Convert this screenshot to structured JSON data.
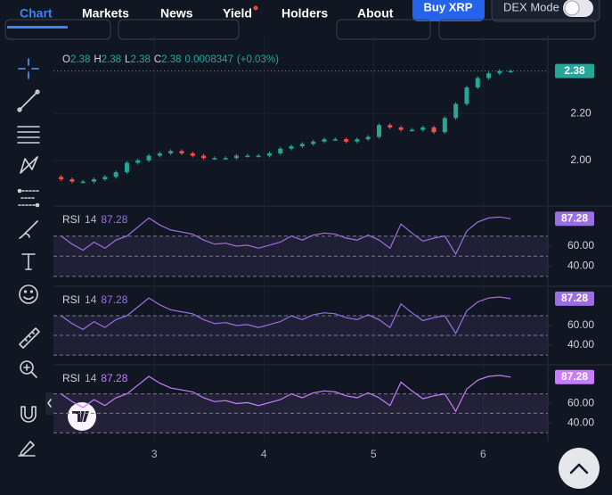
{
  "nav": {
    "items": [
      "Chart",
      "Markets",
      "News",
      "Yield",
      "Holders",
      "About"
    ],
    "buy_button": "Buy XRP",
    "dex_mode": "DEX Mode"
  },
  "chart_data": [
    {
      "type": "candlestick",
      "legend": {
        "keys": [
          "O",
          "H",
          "L",
          "C"
        ],
        "values": [
          2.38,
          2.38,
          2.38,
          2.38
        ],
        "change": 0.0008347,
        "change_pct": "(+0.03%)"
      },
      "x": [
        2.15,
        2.25,
        2.35,
        2.45,
        2.55,
        2.65,
        2.75,
        2.85,
        2.95,
        3.05,
        3.15,
        3.25,
        3.35,
        3.45,
        3.55,
        3.65,
        3.75,
        3.85,
        3.95,
        4.05,
        4.15,
        4.25,
        4.35,
        4.45,
        4.55,
        4.65,
        4.75,
        4.85,
        4.95,
        5.05,
        5.15,
        5.25,
        5.35,
        5.45,
        5.55,
        5.65,
        5.75,
        5.85,
        5.95,
        6.05,
        6.15,
        6.25
      ],
      "open": [
        1.93,
        1.92,
        1.91,
        1.91,
        1.92,
        1.93,
        1.95,
        1.99,
        2.0,
        2.02,
        2.03,
        2.04,
        2.03,
        2.02,
        2.01,
        2.01,
        2.01,
        2.02,
        2.02,
        2.02,
        2.03,
        2.05,
        2.06,
        2.07,
        2.08,
        2.09,
        2.09,
        2.08,
        2.09,
        2.1,
        2.15,
        2.14,
        2.13,
        2.13,
        2.14,
        2.12,
        2.18,
        2.24,
        2.31,
        2.35,
        2.37,
        2.38
      ],
      "close": [
        1.92,
        1.91,
        1.91,
        1.92,
        1.93,
        1.95,
        1.99,
        2.0,
        2.02,
        2.03,
        2.04,
        2.03,
        2.02,
        2.01,
        2.01,
        2.01,
        2.02,
        2.02,
        2.02,
        2.03,
        2.05,
        2.06,
        2.07,
        2.08,
        2.09,
        2.09,
        2.08,
        2.09,
        2.1,
        2.15,
        2.14,
        2.13,
        2.13,
        2.14,
        2.12,
        2.18,
        2.24,
        2.31,
        2.35,
        2.37,
        2.38,
        2.38
      ],
      "up_color": "#26a69a",
      "down_color": "#ef5350",
      "xlim": [
        2.08,
        6.59
      ],
      "xticks": [
        3,
        4,
        5,
        6
      ],
      "ylim": [
        1.81,
        2.53
      ],
      "yticks": [
        {
          "value": 2,
          "label": "2.00"
        },
        {
          "value": 2.2,
          "label": "2.20"
        }
      ],
      "last_price": {
        "value": 2.38,
        "label": "2.38"
      }
    },
    {
      "type": "line",
      "name": "RSI",
      "period": 14,
      "last_value": 87.28,
      "color": "#9c6fe0",
      "values": [
        70,
        62,
        56,
        64,
        58,
        66,
        70,
        79,
        88,
        81,
        76,
        74,
        72,
        66,
        62,
        63,
        60,
        61,
        58,
        61,
        64,
        70,
        66,
        71,
        73,
        72,
        68,
        66,
        71,
        66,
        58,
        82,
        73,
        65,
        68,
        70,
        52,
        75,
        84,
        88,
        89,
        87.28
      ],
      "ylim": [
        21,
        99
      ],
      "yticks": [
        {
          "value": 40,
          "label": "40.00"
        },
        {
          "value": 60,
          "label": "60.00"
        }
      ],
      "band_lines": [
        30,
        50,
        70
      ]
    },
    {
      "type": "line",
      "name": "RSI",
      "period": 14,
      "last_value": 87.28,
      "color": "#9c6fe0",
      "values": [
        70,
        62,
        56,
        64,
        58,
        66,
        70,
        79,
        88,
        81,
        76,
        74,
        72,
        66,
        62,
        63,
        60,
        61,
        58,
        61,
        64,
        70,
        66,
        71,
        73,
        72,
        68,
        66,
        71,
        66,
        58,
        82,
        73,
        65,
        68,
        70,
        52,
        75,
        84,
        88,
        89,
        87.28
      ],
      "ylim": [
        21,
        99
      ],
      "yticks": [
        {
          "value": 40,
          "label": "40.00"
        },
        {
          "value": 60,
          "label": "60.00"
        }
      ],
      "band_lines": [
        30,
        50,
        70
      ]
    },
    {
      "type": "line",
      "name": "RSI",
      "period": 14,
      "last_value": 87.28,
      "color": "#c77dff",
      "values": [
        70,
        62,
        56,
        64,
        58,
        66,
        70,
        79,
        88,
        81,
        76,
        74,
        72,
        66,
        62,
        63,
        60,
        61,
        58,
        61,
        64,
        70,
        66,
        71,
        73,
        72,
        68,
        66,
        71,
        66,
        58,
        82,
        73,
        65,
        68,
        70,
        52,
        75,
        84,
        88,
        89,
        87.28
      ],
      "ylim": [
        21,
        99
      ],
      "yticks": [
        {
          "value": 40,
          "label": "40.00"
        },
        {
          "value": 60,
          "label": "60.00"
        }
      ],
      "band_lines": [
        30,
        50,
        70
      ]
    }
  ]
}
